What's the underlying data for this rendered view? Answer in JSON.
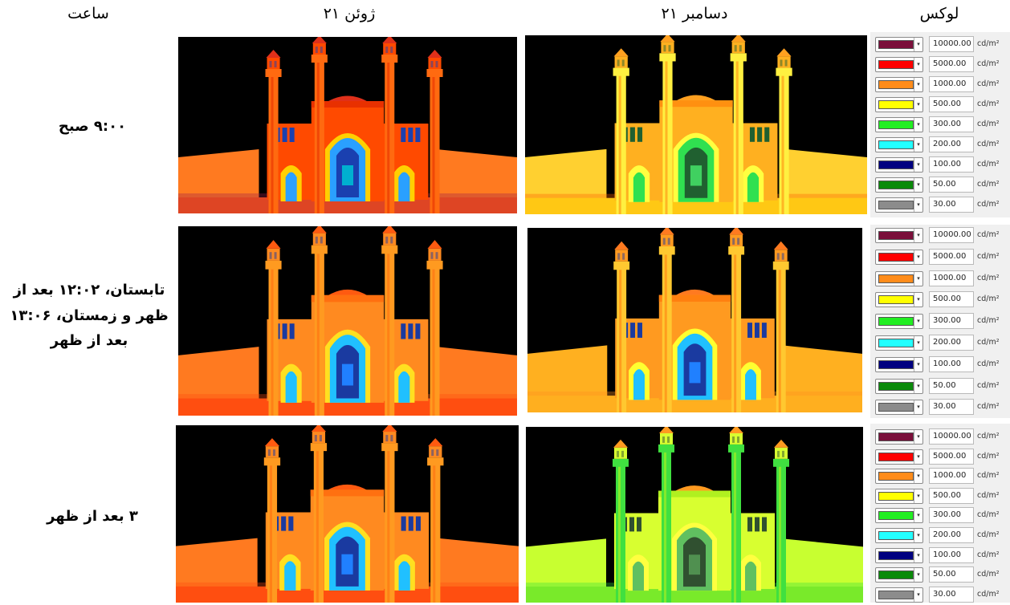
{
  "headers": {
    "time": "ساعت",
    "june": "۲۱ ژوئن",
    "december": "۲۱ دسامبر",
    "lux": "لوکس"
  },
  "rows": [
    {
      "time_label": "۹:۰۰ صبح"
    },
    {
      "time_label": "تابستان، ۱۲:۰۲ بعد از ظهر و زمستان، ۱۳:۰۶ بعد از ظهر"
    },
    {
      "time_label": "۳ بعد از ظهر"
    }
  ],
  "legend": {
    "unit": "cd/m²",
    "items": [
      {
        "value": "10000.00",
        "color": "#7a0f3a"
      },
      {
        "value": "5000.00",
        "color": "#ff0000"
      },
      {
        "value": "1000.00",
        "color": "#ff8c1a"
      },
      {
        "value": "500.00",
        "color": "#ffff00"
      },
      {
        "value": "300.00",
        "color": "#22ee22"
      },
      {
        "value": "200.00",
        "color": "#22ffff"
      },
      {
        "value": "100.00",
        "color": "#000080"
      },
      {
        "value": "50.00",
        "color": "#0a8a0a"
      },
      {
        "value": "30.00",
        "color": "#8c8c8c"
      }
    ]
  },
  "renders": [
    {
      "id": "june-9am",
      "scheme": "red"
    },
    {
      "id": "dec-9am",
      "scheme": "yellow"
    },
    {
      "id": "june-noon",
      "scheme": "orange"
    },
    {
      "id": "dec-noon",
      "scheme": "orange-yellow"
    },
    {
      "id": "june-3pm",
      "scheme": "orange"
    },
    {
      "id": "dec-3pm",
      "scheme": "green"
    }
  ]
}
